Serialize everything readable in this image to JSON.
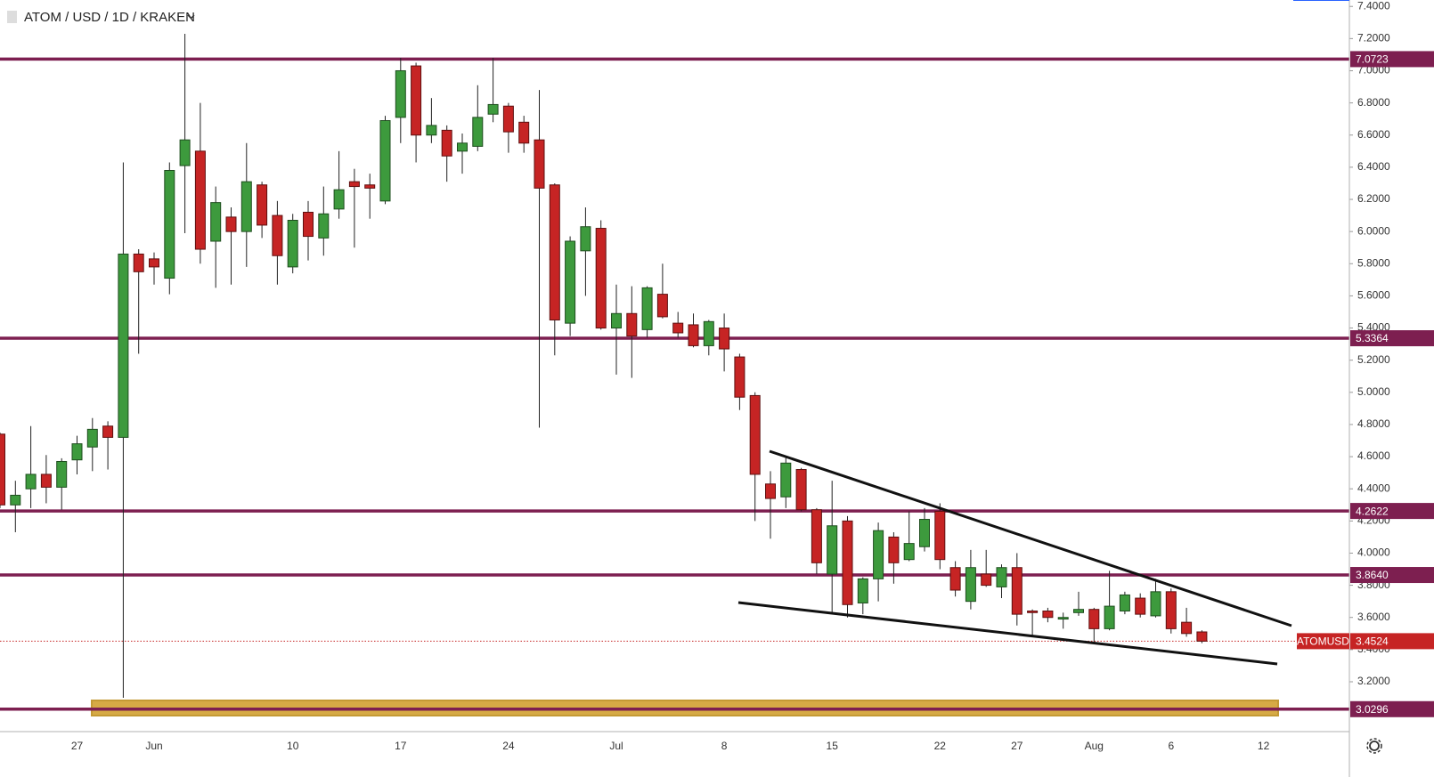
{
  "chart_data": {
    "type": "candlestick",
    "title": "ATOM / USD / 1D / KRAKEN",
    "categories": [
      null,
      null,
      null,
      null,
      null,
      "27",
      null,
      null,
      null,
      null,
      "Jun",
      null,
      null,
      null,
      null,
      null,
      null,
      null,
      null,
      "10",
      null,
      null,
      null,
      null,
      null,
      null,
      "17",
      null,
      null,
      null,
      null,
      null,
      null,
      "24",
      null,
      null,
      null,
      null,
      null,
      null,
      "Jul",
      null,
      null,
      null,
      null,
      null,
      null,
      "8",
      null,
      null,
      null,
      null,
      null,
      null,
      "15",
      null,
      null,
      null,
      null,
      null,
      null,
      "22",
      null,
      null,
      null,
      null,
      "27",
      null,
      null,
      null,
      null,
      "Aug",
      null,
      null,
      null,
      null,
      "6",
      null,
      null,
      null,
      null,
      null,
      "12"
    ],
    "open": [
      4.74,
      4.3,
      4.4,
      4.49,
      4.41,
      4.58,
      4.66,
      4.79,
      4.72,
      5.86,
      5.83,
      5.71,
      6.41,
      6.5,
      5.94,
      6.09,
      6.0,
      6.29,
      6.1,
      5.78,
      6.12,
      5.96,
      6.14,
      6.31,
      6.29,
      6.19,
      6.71,
      7.03,
      6.6,
      6.63,
      6.5,
      6.53,
      6.73,
      6.78,
      6.68,
      6.57,
      6.29,
      5.43,
      5.88,
      6.02,
      5.4,
      5.49,
      5.39,
      5.61,
      5.43,
      5.42,
      5.29,
      5.4,
      5.22,
      4.98,
      4.43,
      4.35,
      4.52,
      4.27,
      3.87,
      4.2,
      3.69,
      3.84,
      4.1,
      3.96,
      4.04,
      4.26,
      3.91,
      3.7,
      3.87,
      3.79,
      3.91,
      3.64,
      3.64,
      3.59,
      3.63,
      3.65,
      3.53,
      3.64,
      3.72,
      3.61,
      3.76,
      3.57,
      3.51,
      null,
      null,
      null,
      null
    ],
    "high": [
      4.75,
      4.45,
      4.79,
      4.61,
      4.59,
      4.73,
      4.84,
      4.82,
      6.43,
      5.89,
      5.87,
      6.43,
      7.23,
      6.8,
      6.28,
      6.15,
      6.55,
      6.31,
      6.19,
      6.11,
      6.19,
      6.28,
      6.5,
      6.39,
      6.36,
      6.72,
      7.08,
      7.05,
      6.83,
      6.66,
      6.61,
      6.91,
      7.08,
      6.8,
      6.72,
      6.88,
      6.3,
      5.97,
      6.15,
      6.07,
      5.67,
      5.66,
      5.66,
      5.8,
      5.5,
      5.49,
      5.45,
      5.49,
      5.24,
      5.0,
      4.51,
      4.6,
      4.53,
      4.28,
      4.45,
      4.23,
      3.85,
      4.19,
      4.13,
      4.26,
      4.28,
      4.31,
      3.95,
      4.02,
      4.02,
      3.93,
      4.0,
      3.65,
      3.66,
      3.63,
      3.76,
      3.66,
      3.89,
      3.76,
      3.75,
      3.84,
      3.78,
      3.66,
      3.52,
      null,
      null,
      null,
      null
    ],
    "low": [
      4.28,
      4.13,
      4.28,
      4.31,
      4.27,
      4.49,
      4.51,
      4.52,
      3.1,
      5.24,
      5.67,
      5.61,
      5.99,
      5.8,
      5.65,
      5.67,
      5.78,
      5.96,
      5.67,
      5.74,
      5.82,
      5.85,
      6.08,
      5.9,
      6.08,
      6.17,
      6.55,
      6.43,
      6.55,
      6.31,
      6.36,
      6.5,
      6.68,
      6.49,
      6.49,
      4.78,
      5.23,
      5.35,
      5.6,
      5.39,
      5.11,
      5.09,
      5.34,
      5.46,
      5.34,
      5.28,
      5.23,
      5.13,
      4.89,
      4.2,
      4.09,
      4.28,
      4.26,
      3.87,
      3.62,
      3.6,
      3.62,
      3.7,
      3.81,
      3.95,
      4.01,
      3.9,
      3.73,
      3.65,
      3.79,
      3.72,
      3.55,
      3.48,
      3.57,
      3.53,
      3.61,
      3.45,
      3.52,
      3.62,
      3.6,
      3.6,
      3.5,
      3.48,
      3.44,
      null,
      null,
      null,
      null
    ],
    "close": [
      4.3,
      4.36,
      4.49,
      4.41,
      4.57,
      4.68,
      4.77,
      4.72,
      5.86,
      5.75,
      5.78,
      6.38,
      6.57,
      5.89,
      6.18,
      6.0,
      6.31,
      6.04,
      5.85,
      6.07,
      5.97,
      6.11,
      6.26,
      6.28,
      6.27,
      6.69,
      7.0,
      6.6,
      6.66,
      6.47,
      6.55,
      6.71,
      6.79,
      6.62,
      6.55,
      6.27,
      5.45,
      5.94,
      6.03,
      5.4,
      5.49,
      5.35,
      5.65,
      5.47,
      5.37,
      5.29,
      5.44,
      5.27,
      4.97,
      4.49,
      4.34,
      4.56,
      4.27,
      3.94,
      4.17,
      3.68,
      3.84,
      4.14,
      3.94,
      4.06,
      4.21,
      3.96,
      3.77,
      3.91,
      3.8,
      3.91,
      3.62,
      3.63,
      3.6,
      3.6,
      3.65,
      3.53,
      3.67,
      3.74,
      3.62,
      3.76,
      3.53,
      3.5,
      3.4524,
      null,
      null,
      null,
      null
    ],
    "up_color": "#3d9a3d",
    "down_color": "#c62424",
    "level_color": "#7d1f50",
    "ylim": [
      2.89,
      7.44
    ],
    "yticks": [
      {
        "value": 3.2,
        "label": "3.2000"
      },
      {
        "value": 3.4,
        "label": "3.4000"
      },
      {
        "value": 3.6,
        "label": "3.6000"
      },
      {
        "value": 3.8,
        "label": "3.8000"
      },
      {
        "value": 4.0,
        "label": "4.0000"
      },
      {
        "value": 4.2,
        "label": "4.2000"
      },
      {
        "value": 4.4,
        "label": "4.4000"
      },
      {
        "value": 4.6,
        "label": "4.6000"
      },
      {
        "value": 4.8,
        "label": "4.8000"
      },
      {
        "value": 5.0,
        "label": "5.0000"
      },
      {
        "value": 5.2,
        "label": "5.2000"
      },
      {
        "value": 5.4,
        "label": "5.4000"
      },
      {
        "value": 5.6,
        "label": "5.6000"
      },
      {
        "value": 5.8,
        "label": "5.8000"
      },
      {
        "value": 6.0,
        "label": "6.0000"
      },
      {
        "value": 6.2,
        "label": "6.2000"
      },
      {
        "value": 6.4,
        "label": "6.4000"
      },
      {
        "value": 6.6,
        "label": "6.6000"
      },
      {
        "value": 6.8,
        "label": "6.8000"
      },
      {
        "value": 7.0,
        "label": "7.0000"
      },
      {
        "value": 7.2,
        "label": "7.2000"
      },
      {
        "value": 7.4,
        "label": "7.4000"
      }
    ],
    "levels": [
      {
        "value": 7.0723,
        "label": "7.0723"
      },
      {
        "value": 5.3364,
        "label": "5.3364"
      },
      {
        "value": 4.2622,
        "label": "4.2622"
      },
      {
        "value": 3.864,
        "label": "3.8640"
      },
      {
        "value": 3.0296,
        "label": "3.0296"
      }
    ],
    "last_price": {
      "name": "ATOMUSD",
      "value": 3.4524,
      "color": "#c62424"
    }
  }
}
